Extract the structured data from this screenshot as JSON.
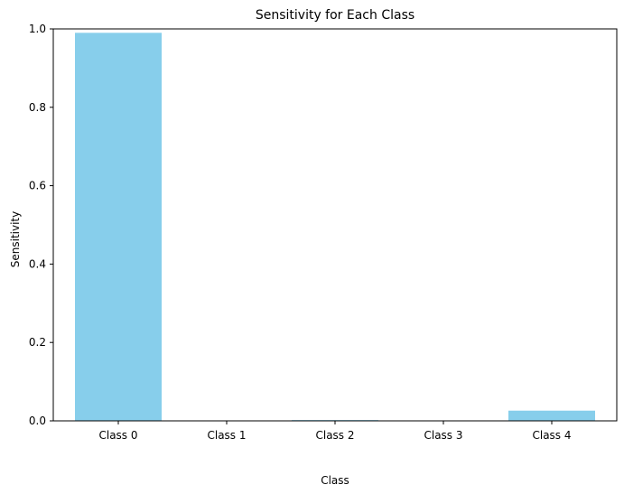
{
  "chart_data": {
    "type": "bar",
    "title": "Sensitivity for Each Class",
    "xlabel": "Class",
    "ylabel": "Sensitivity",
    "categories": [
      "Class 0",
      "Class 1",
      "Class 2",
      "Class 3",
      "Class 4"
    ],
    "values": [
      0.99,
      0.0,
      0.002,
      0.0,
      0.026
    ],
    "ylim": [
      0,
      1
    ],
    "yticks": [
      "0.0",
      "0.2",
      "0.4",
      "0.6",
      "0.8",
      "1.0"
    ],
    "grid": false,
    "bar_color": "#87ceeb"
  }
}
